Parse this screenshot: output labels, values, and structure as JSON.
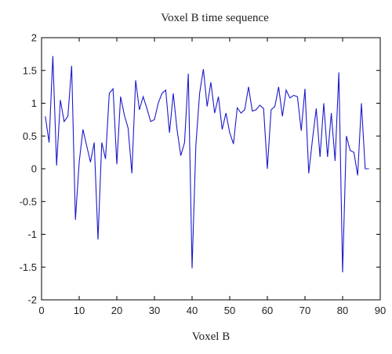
{
  "chart_data": {
    "type": "line",
    "title": "Voxel B time sequence",
    "xlabel": "Voxel B",
    "ylabel": "",
    "xlim": [
      0,
      90
    ],
    "ylim": [
      -2,
      2
    ],
    "xticks": [
      0,
      10,
      20,
      30,
      40,
      50,
      60,
      70,
      80,
      90
    ],
    "yticks": [
      -2,
      -1.5,
      -1,
      -0.5,
      0,
      0.5,
      1,
      1.5,
      2
    ],
    "grid": false,
    "legend": "none",
    "series": [
      {
        "color": "#1a1acc",
        "x": [
          1,
          2,
          3,
          4,
          5,
          6,
          7,
          8,
          9,
          10,
          11,
          12,
          13,
          14,
          15,
          16,
          17,
          18,
          19,
          20,
          21,
          22,
          23,
          24,
          25,
          26,
          27,
          28,
          29,
          30,
          31,
          32,
          33,
          34,
          35,
          36,
          37,
          38,
          39,
          40,
          41,
          42,
          43,
          44,
          45,
          46,
          47,
          48,
          49,
          50,
          51,
          52,
          53,
          54,
          55,
          56,
          57,
          58,
          59,
          60,
          61,
          62,
          63,
          64,
          65,
          66,
          67,
          68,
          69,
          70,
          71,
          72,
          73,
          74,
          75,
          76,
          77,
          78,
          79,
          80,
          81,
          82,
          83,
          84,
          85,
          86,
          87
        ],
        "y": [
          0.8,
          0.4,
          1.72,
          0.05,
          1.05,
          0.72,
          0.8,
          1.57,
          -0.78,
          0.1,
          0.6,
          0.35,
          0.1,
          0.4,
          -1.08,
          0.4,
          0.15,
          1.15,
          1.22,
          0.07,
          1.1,
          0.82,
          0.62,
          -0.07,
          1.35,
          0.9,
          1.1,
          0.92,
          0.72,
          0.75,
          1.0,
          1.15,
          1.2,
          0.55,
          1.15,
          0.6,
          0.2,
          0.4,
          1.45,
          -1.52,
          0.35,
          1.15,
          1.52,
          0.95,
          1.32,
          0.85,
          1.1,
          0.6,
          0.85,
          0.55,
          0.38,
          0.93,
          0.85,
          0.9,
          1.25,
          0.88,
          0.9,
          0.97,
          0.92,
          0.0,
          0.9,
          0.95,
          1.25,
          0.8,
          1.2,
          1.08,
          1.12,
          1.1,
          0.58,
          1.22,
          -0.07,
          0.45,
          0.92,
          0.18,
          1.0,
          0.18,
          0.85,
          0.12,
          1.47,
          -1.58,
          0.5,
          0.28,
          0.25,
          -0.1,
          1.0,
          0.0,
          0.0
        ]
      }
    ]
  }
}
